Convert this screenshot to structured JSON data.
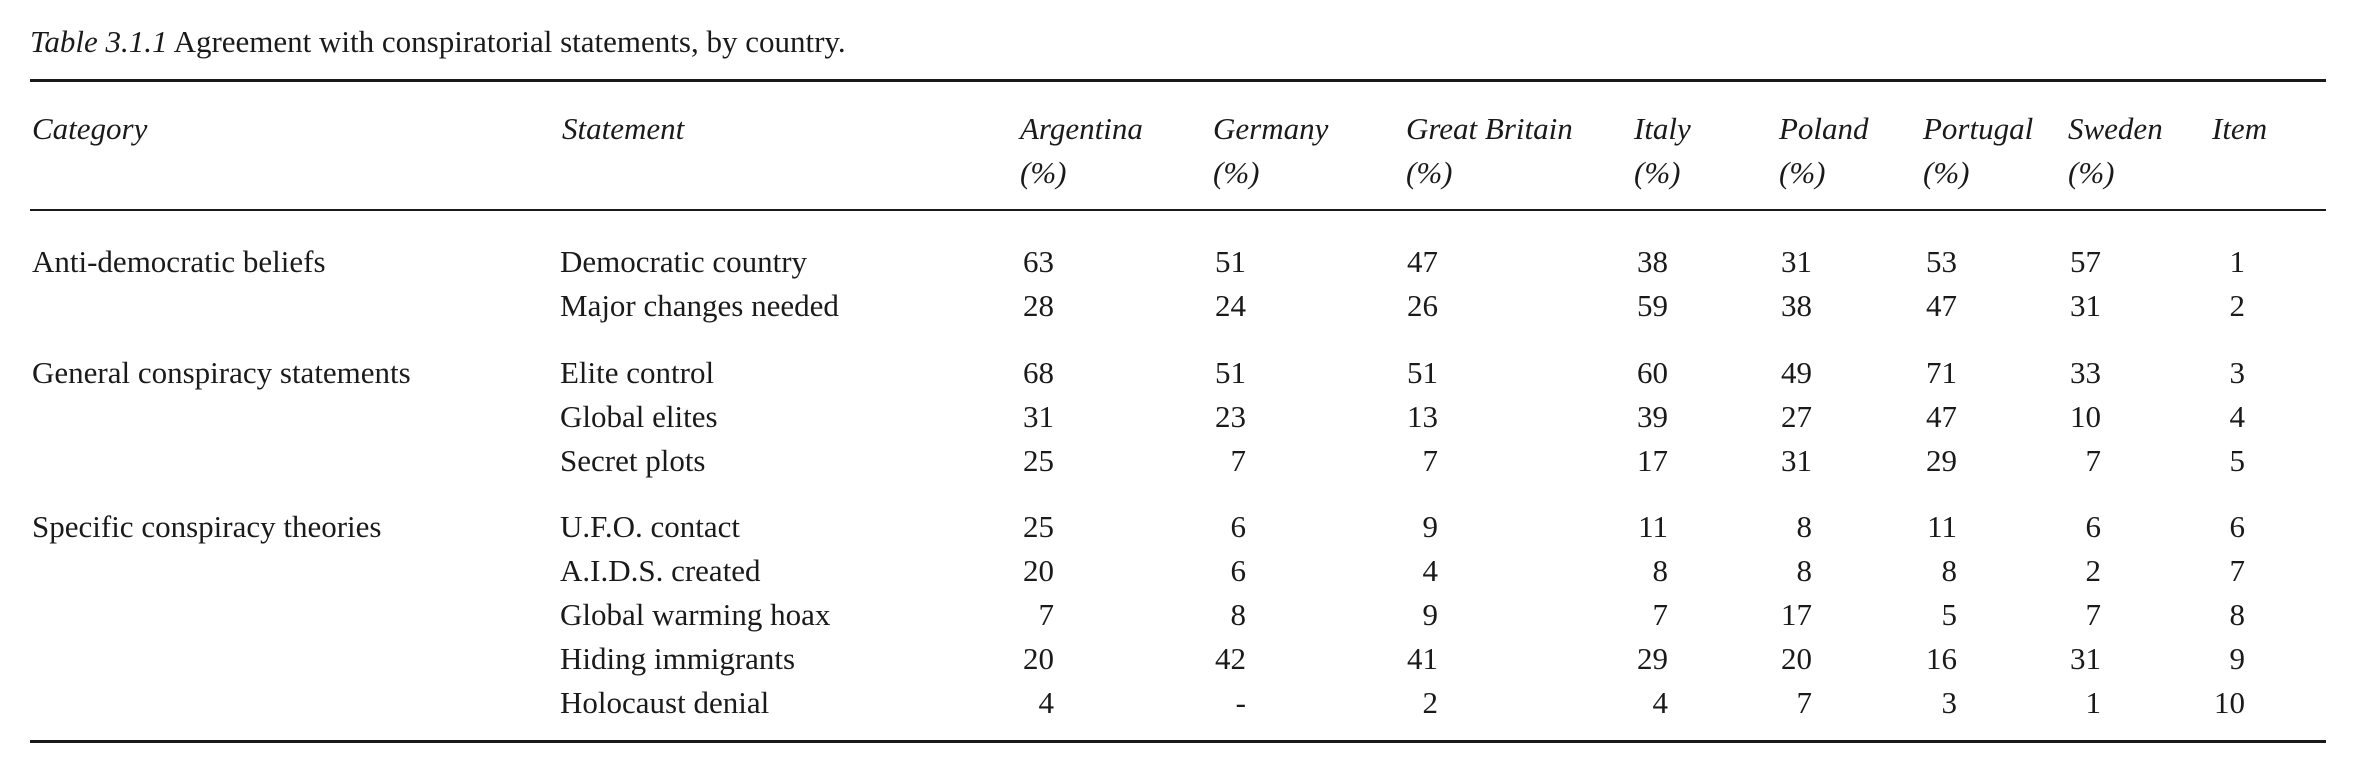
{
  "caption": {
    "label": "Table 3.1.1",
    "title": "Agreement with conspiratorial statements, by country."
  },
  "headers": {
    "category": "Category",
    "statement": "Statement",
    "countries": [
      {
        "name": "Argentina",
        "unit": "(%)"
      },
      {
        "name": "Germany",
        "unit": "(%)"
      },
      {
        "name": "Great Britain",
        "unit": "(%)"
      },
      {
        "name": "Italy",
        "unit": "(%)"
      },
      {
        "name": "Poland",
        "unit": "(%)"
      },
      {
        "name": "Portugal",
        "unit": "(%)"
      },
      {
        "name": "Sweden",
        "unit": "(%)"
      }
    ],
    "item": "Item"
  },
  "groups": [
    {
      "category": "Anti-democratic beliefs",
      "rows": [
        {
          "statement": "Democratic country",
          "values": [
            "63",
            "51",
            "47",
            "38",
            "31",
            "53",
            "57"
          ],
          "item": "1"
        },
        {
          "statement": "Major changes needed",
          "values": [
            "28",
            "24",
            "26",
            "59",
            "38",
            "47",
            "31"
          ],
          "item": "2"
        }
      ]
    },
    {
      "category": "General conspiracy statements",
      "rows": [
        {
          "statement": "Elite control",
          "values": [
            "68",
            "51",
            "51",
            "60",
            "49",
            "71",
            "33"
          ],
          "item": "3"
        },
        {
          "statement": "Global elites",
          "values": [
            "31",
            "23",
            "13",
            "39",
            "27",
            "47",
            "10"
          ],
          "item": "4"
        },
        {
          "statement": "Secret plots",
          "values": [
            "25",
            "7",
            "7",
            "17",
            "31",
            "29",
            "7"
          ],
          "item": "5"
        }
      ]
    },
    {
      "category": "Specific conspiracy theories",
      "rows": [
        {
          "statement": "U.F.O. contact",
          "values": [
            "25",
            "6",
            "9",
            "11",
            "8",
            "11",
            "6"
          ],
          "item": "6"
        },
        {
          "statement": "A.I.D.S. created",
          "values": [
            "20",
            "6",
            "4",
            "8",
            "8",
            "8",
            "2"
          ],
          "item": "7"
        },
        {
          "statement": "Global warming hoax",
          "values": [
            "7",
            "8",
            "9",
            "7",
            "17",
            "5",
            "7"
          ],
          "item": "8"
        },
        {
          "statement": "Hiding immigrants",
          "values": [
            "20",
            "42",
            "41",
            "29",
            "20",
            "16",
            "31"
          ],
          "item": "9"
        },
        {
          "statement": "Holocaust denial",
          "values": [
            "4",
            "-",
            "2",
            "4",
            "7",
            "3",
            "1"
          ],
          "item": "10"
        }
      ]
    }
  ]
}
